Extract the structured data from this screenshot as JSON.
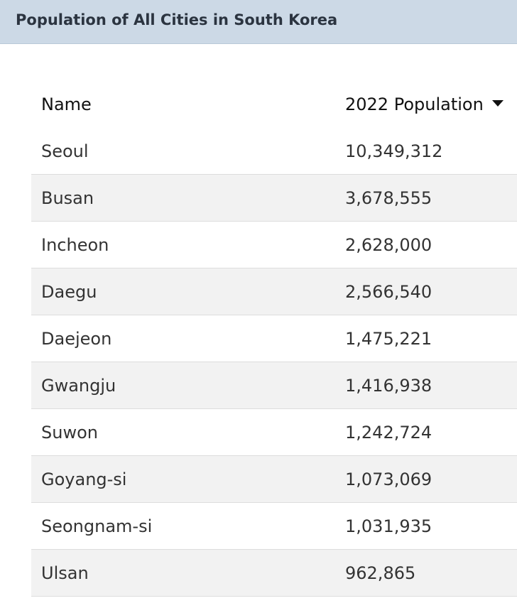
{
  "header": {
    "title": "Population of All Cities in South Korea"
  },
  "table": {
    "columns": {
      "name": "Name",
      "population": "2022 Population"
    },
    "sort_icon": "caret-down-icon",
    "rows": [
      {
        "name": "Seoul",
        "population": "10,349,312"
      },
      {
        "name": "Busan",
        "population": "3,678,555"
      },
      {
        "name": "Incheon",
        "population": "2,628,000"
      },
      {
        "name": "Daegu",
        "population": "2,566,540"
      },
      {
        "name": "Daejeon",
        "population": "1,475,221"
      },
      {
        "name": "Gwangju",
        "population": "1,416,938"
      },
      {
        "name": "Suwon",
        "population": "1,242,724"
      },
      {
        "name": "Goyang-si",
        "population": "1,073,069"
      },
      {
        "name": "Seongnam-si",
        "population": "1,031,935"
      },
      {
        "name": "Ulsan",
        "population": "962,865"
      }
    ]
  }
}
